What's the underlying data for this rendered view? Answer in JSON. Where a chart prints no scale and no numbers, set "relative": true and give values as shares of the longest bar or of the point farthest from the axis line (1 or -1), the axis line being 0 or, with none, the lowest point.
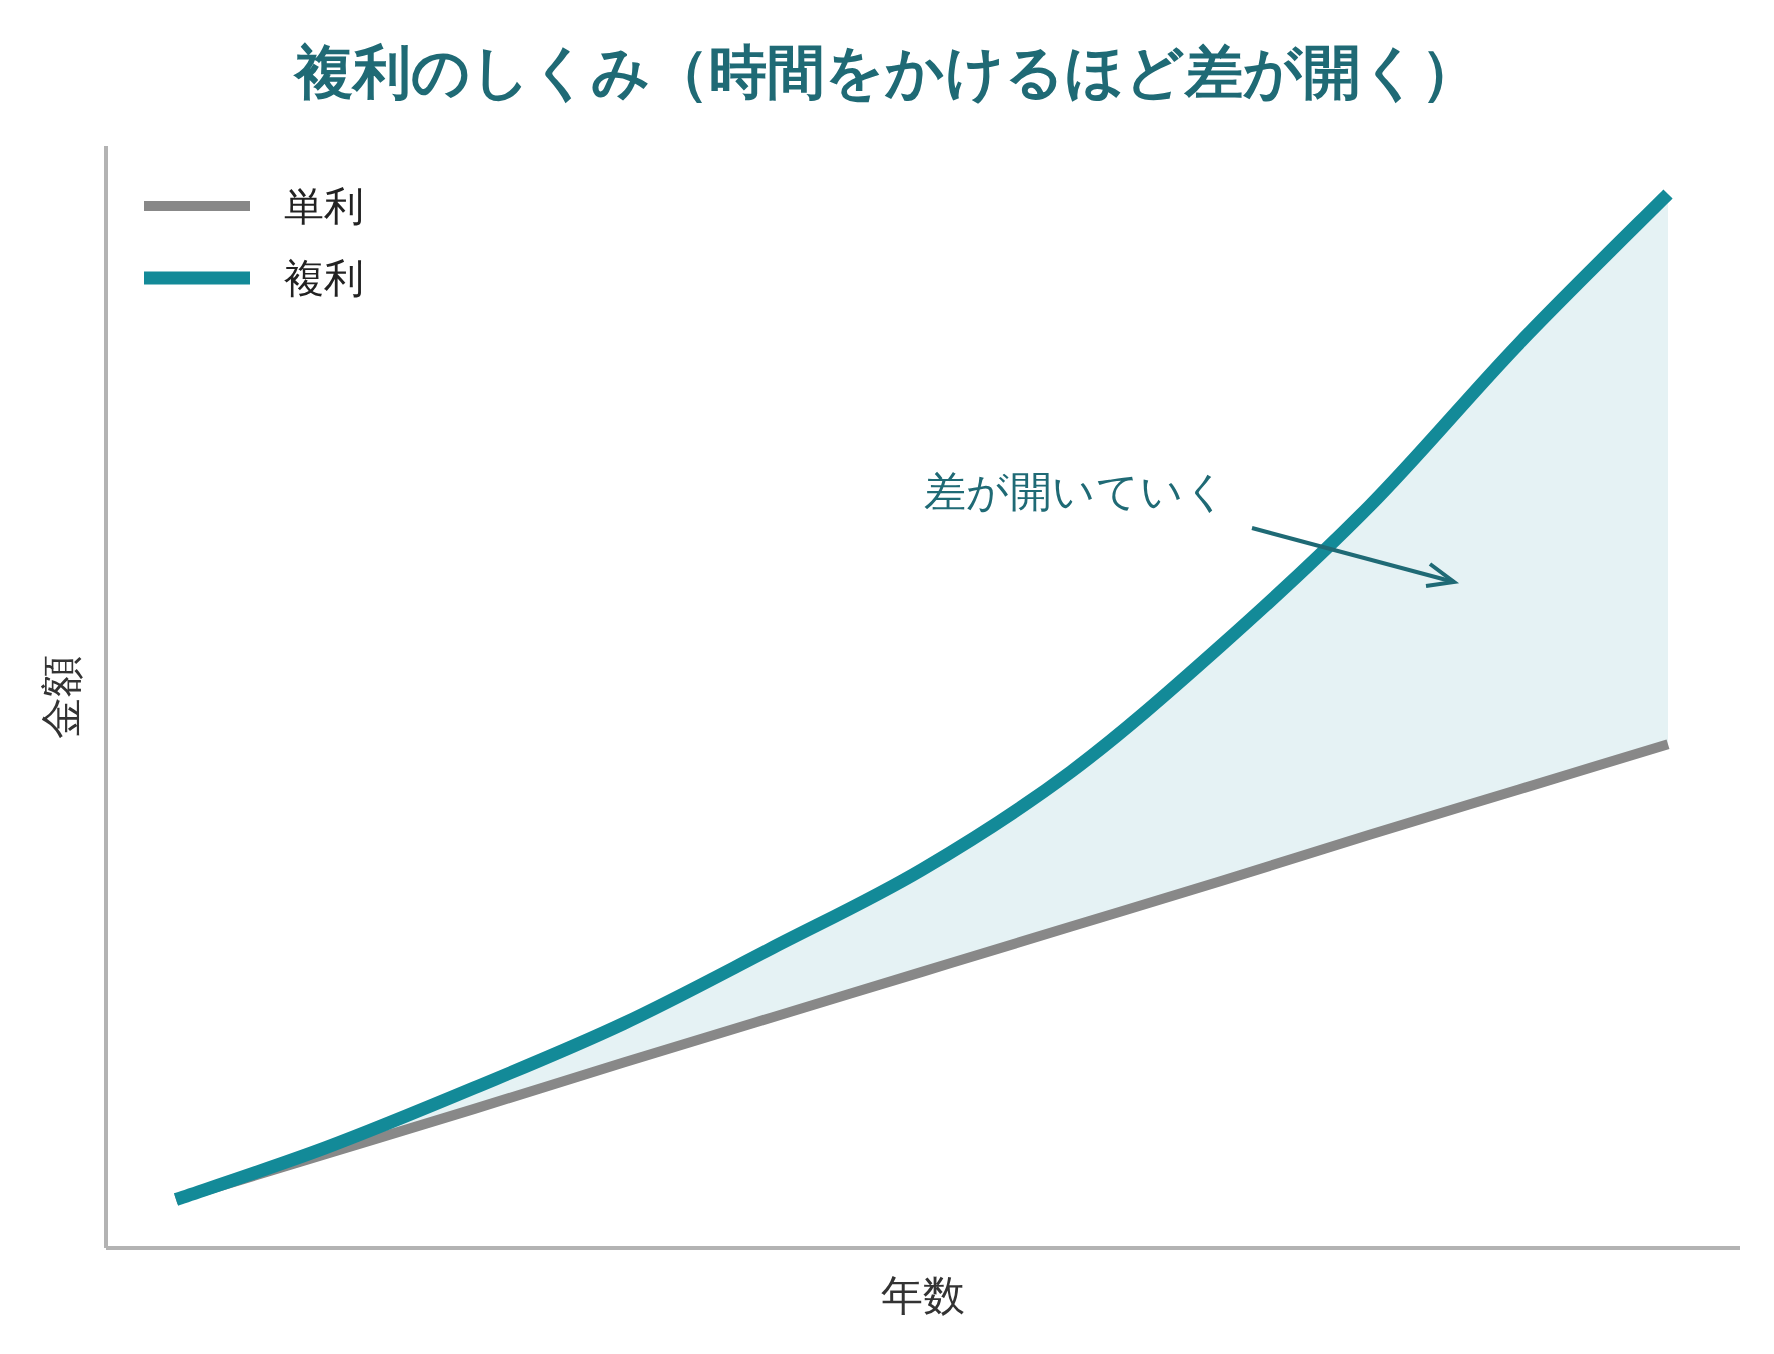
{
  "chart_data": {
    "type": "line",
    "title": "複利のしくみ（時間をかけるほど差が開く）",
    "xlabel": "年数",
    "ylabel": "金額",
    "relative": true,
    "legend": "top left",
    "categories": [
      null,
      null,
      null,
      null,
      null,
      null,
      null,
      null,
      null,
      null,
      null
    ],
    "series": [
      {
        "name": "単利",
        "color": "#888888",
        "values": [
          0.046,
          0.089,
          0.132,
          0.176,
          0.219,
          0.262,
          0.305,
          0.348,
          0.392,
          0.435,
          0.478
        ]
      },
      {
        "name": "複利",
        "color": "#138a98",
        "values": [
          0.046,
          0.095,
          0.152,
          0.213,
          0.285,
          0.359,
          0.452,
          0.571,
          0.704,
          0.858,
          1.0
        ],
        "lower": [
          0.046,
          0.089,
          0.132,
          0.176,
          0.219,
          0.262,
          0.305,
          0.348,
          0.392,
          0.435,
          0.478
        ],
        "upper": [
          0.046,
          0.095,
          0.152,
          0.213,
          0.285,
          0.359,
          0.452,
          0.571,
          0.704,
          0.858,
          1.0
        ]
      }
    ],
    "annotations": [
      "差が開いていく"
    ]
  }
}
